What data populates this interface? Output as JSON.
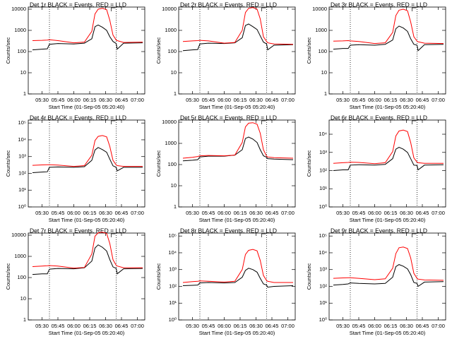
{
  "chart_data": [
    {
      "type": "line",
      "title": "Det 1r BLACK = Events, RED = LLD",
      "x_label": "Start Time (01-Sep-05 05:20:40)",
      "y_label": "Counts/sec",
      "log_scale": true,
      "xlim": [
        "05:17",
        "07:07"
      ],
      "xticks": [
        "05:30",
        "05:45",
        "06:00",
        "06:15",
        "06:30",
        "06:45",
        "07:00"
      ],
      "vlines": [
        "05:37",
        "06:40"
      ],
      "ylim": [
        1,
        12600
      ],
      "yticks": [
        1,
        10,
        100,
        1000,
        10000
      ],
      "x": [
        "05:21",
        "05:30",
        "05:35",
        "05:37",
        "05:45",
        "06:00",
        "06:10",
        "06:17",
        "06:20",
        "06:23",
        "06:27",
        "06:31",
        "06:34",
        "06:37",
        "06:40",
        "06:41",
        "06:47",
        "07:05"
      ],
      "series": [
        {
          "name": "BLACK = Events",
          "color": "#000000",
          "values": [
            120,
            130,
            135,
            220,
            240,
            230,
            250,
            400,
            1500,
            1800,
            1400,
            1000,
            500,
            300,
            240,
            130,
            250,
            260
          ]
        },
        {
          "name": "RED = LLD",
          "color": "#ff0000",
          "values": [
            330,
            340,
            350,
            360,
            330,
            260,
            280,
            900,
            6000,
            10000,
            11000,
            9500,
            3000,
            600,
            350,
            330,
            270,
            280
          ]
        }
      ]
    },
    {
      "type": "line",
      "title": "Det 2r BLACK = Events, RED = LLD",
      "x_label": "Start Time (01-Sep-05 05:20:40)",
      "y_label": "Counts/sec",
      "log_scale": true,
      "xlim": [
        "05:17",
        "07:07"
      ],
      "xticks": [
        "05:30",
        "05:45",
        "06:00",
        "06:15",
        "06:30",
        "06:45",
        "07:00"
      ],
      "vlines": [
        "05:37",
        "06:40"
      ],
      "ylim": [
        1,
        12600
      ],
      "yticks": [
        1,
        10,
        100,
        1000,
        10000
      ],
      "x": [
        "05:21",
        "05:30",
        "05:35",
        "05:37",
        "05:45",
        "06:00",
        "06:10",
        "06:17",
        "06:20",
        "06:23",
        "06:27",
        "06:31",
        "06:34",
        "06:37",
        "06:40",
        "06:41",
        "06:47",
        "07:05"
      ],
      "series": [
        {
          "name": "BLACK = Events",
          "color": "#000000",
          "values": [
            110,
            120,
            125,
            230,
            250,
            240,
            260,
            450,
            1700,
            2000,
            1500,
            1100,
            550,
            280,
            230,
            120,
            200,
            210
          ]
        },
        {
          "name": "RED = LLD",
          "color": "#ff0000",
          "values": [
            300,
            320,
            330,
            340,
            320,
            250,
            270,
            1000,
            7000,
            11000,
            12000,
            10000,
            3500,
            500,
            300,
            260,
            230,
            220
          ]
        }
      ]
    },
    {
      "type": "line",
      "title": "Det 3r BLACK = Events, RED = LLD",
      "x_label": "Start Time (01-Sep-05 05:20:40)",
      "y_label": "Counts/sec",
      "log_scale": true,
      "xlim": [
        "05:17",
        "07:07"
      ],
      "xticks": [
        "05:30",
        "05:45",
        "06:00",
        "06:15",
        "06:30",
        "06:45",
        "07:00"
      ],
      "vlines": [
        "05:37",
        "06:40"
      ],
      "ylim": [
        1,
        12600
      ],
      "yticks": [
        1,
        10,
        100,
        1000,
        10000
      ],
      "x": [
        "05:21",
        "05:30",
        "05:35",
        "05:37",
        "05:45",
        "06:00",
        "06:10",
        "06:17",
        "06:20",
        "06:23",
        "06:27",
        "06:31",
        "06:34",
        "06:37",
        "06:40",
        "06:41",
        "06:47",
        "07:05"
      ],
      "series": [
        {
          "name": "BLACK = Events",
          "color": "#000000",
          "values": [
            130,
            140,
            140,
            200,
            210,
            200,
            220,
            350,
            1200,
            1600,
            1300,
            900,
            400,
            220,
            200,
            110,
            210,
            220
          ]
        },
        {
          "name": "RED = LLD",
          "color": "#ff0000",
          "values": [
            310,
            320,
            330,
            320,
            300,
            240,
            260,
            800,
            5000,
            9000,
            10000,
            8500,
            2500,
            500,
            310,
            290,
            250,
            240
          ]
        }
      ]
    },
    {
      "type": "line",
      "title": "Det 4r BLACK = Events, RED = LLD",
      "x_label": "Start Time (01-Sep-05 05:20:40)",
      "y_label": "Counts/sec",
      "log_scale": true,
      "xlim": [
        "05:17",
        "07:07"
      ],
      "xticks": [
        "05:30",
        "05:45",
        "06:00",
        "06:15",
        "06:30",
        "06:45",
        "07:00"
      ],
      "vlines": [
        "05:37",
        "06:40"
      ],
      "ylim": [
        1,
        150000
      ],
      "yticks": [
        {
          "value": 1,
          "label": "10⁰"
        },
        {
          "value": 10,
          "label": "10¹"
        },
        {
          "value": 100,
          "label": "10²"
        },
        {
          "value": 1000,
          "label": "10³"
        },
        {
          "value": 10000,
          "label": "10⁴"
        },
        {
          "value": 100000,
          "label": "10⁵"
        }
      ],
      "x": [
        "05:21",
        "05:30",
        "05:35",
        "05:37",
        "05:45",
        "06:00",
        "06:10",
        "06:17",
        "06:20",
        "06:23",
        "06:27",
        "06:31",
        "06:34",
        "06:37",
        "06:40",
        "06:41",
        "06:47",
        "07:05"
      ],
      "series": [
        {
          "name": "BLACK = Events",
          "color": "#000000",
          "values": [
            110,
            120,
            125,
            230,
            240,
            230,
            250,
            600,
            2500,
            3500,
            2600,
            1800,
            700,
            280,
            230,
            140,
            230,
            230
          ]
        },
        {
          "name": "RED = LLD",
          "color": "#ff0000",
          "values": [
            300,
            320,
            330,
            330,
            310,
            260,
            290,
            1200,
            9000,
            16000,
            18000,
            15000,
            4000,
            600,
            320,
            290,
            260,
            260
          ]
        }
      ]
    },
    {
      "type": "line",
      "title": "Det 5r BLACK = Events, RED = LLD",
      "x_label": "Start Time (01-Sep-05 05:20:40)",
      "y_label": "Counts/sec",
      "log_scale": true,
      "xlim": [
        "05:17",
        "07:07"
      ],
      "xticks": [
        "05:30",
        "05:45",
        "06:00",
        "06:15",
        "06:30",
        "06:45",
        "07:00"
      ],
      "vlines": [
        "05:37",
        "06:40"
      ],
      "ylim": [
        1,
        12600
      ],
      "yticks": [
        1,
        10,
        100,
        1000,
        10000
      ],
      "x": [
        "05:21",
        "05:30",
        "05:35",
        "05:37",
        "05:45",
        "06:00",
        "06:10",
        "06:17",
        "06:20",
        "06:23",
        "06:27",
        "06:31",
        "06:34",
        "06:37",
        "06:40",
        "06:41",
        "06:47",
        "07:05"
      ],
      "series": [
        {
          "name": "BLACK = Events",
          "color": "#000000",
          "values": [
            150,
            160,
            170,
            230,
            250,
            250,
            280,
            500,
            1700,
            2000,
            1600,
            1100,
            500,
            260,
            220,
            190,
            180,
            170
          ]
        },
        {
          "name": "RED = LLD",
          "color": "#ff0000",
          "values": [
            200,
            220,
            240,
            260,
            270,
            260,
            280,
            1100,
            6000,
            9000,
            9500,
            8000,
            3000,
            500,
            250,
            230,
            210,
            200
          ]
        }
      ]
    },
    {
      "type": "line",
      "title": "Det 6r BLACK = Events, RED = LLD",
      "x_label": "Start Time (01-Sep-05 05:20:40)",
      "y_label": "Counts/sec",
      "log_scale": true,
      "xlim": [
        "05:17",
        "07:07"
      ],
      "xticks": [
        "05:30",
        "05:45",
        "06:00",
        "06:15",
        "06:30",
        "06:45",
        "07:00"
      ],
      "vlines": [
        "05:37",
        "06:40"
      ],
      "ylim": [
        1,
        60000
      ],
      "yticks": [
        {
          "value": 1,
          "label": "10⁰"
        },
        {
          "value": 10,
          "label": "10¹"
        },
        {
          "value": 100,
          "label": "10²"
        },
        {
          "value": 1000,
          "label": "10³"
        },
        {
          "value": 10000,
          "label": "10⁴"
        }
      ],
      "x": [
        "05:21",
        "05:30",
        "05:35",
        "05:37",
        "05:45",
        "06:00",
        "06:10",
        "06:17",
        "06:20",
        "06:23",
        "06:27",
        "06:31",
        "06:34",
        "06:37",
        "06:40",
        "06:41",
        "06:47",
        "07:05"
      ],
      "series": [
        {
          "name": "BLACK = Events",
          "color": "#000000",
          "values": [
            100,
            110,
            110,
            200,
            210,
            200,
            220,
            450,
            1500,
            1900,
            1500,
            1000,
            450,
            200,
            190,
            110,
            200,
            210
          ]
        },
        {
          "name": "RED = LLD",
          "color": "#ff0000",
          "values": [
            250,
            270,
            280,
            290,
            280,
            240,
            270,
            1100,
            8000,
            15000,
            17000,
            14000,
            3500,
            500,
            290,
            270,
            250,
            250
          ]
        }
      ]
    },
    {
      "type": "line",
      "title": "Det 7r BLACK = Events, RED = LLD",
      "x_label": "Start Time (01-Sep-05 05:20:40)",
      "y_label": "Counts/sec",
      "log_scale": true,
      "xlim": [
        "05:17",
        "07:07"
      ],
      "xticks": [
        "05:30",
        "05:45",
        "06:00",
        "06:15",
        "06:30",
        "06:45",
        "07:00"
      ],
      "vlines": [
        "05:37",
        "06:40"
      ],
      "ylim": [
        1,
        12600
      ],
      "yticks": [
        1,
        10,
        100,
        1000,
        10000
      ],
      "x": [
        "05:21",
        "05:30",
        "05:35",
        "05:37",
        "05:45",
        "06:00",
        "06:10",
        "06:17",
        "06:20",
        "06:23",
        "06:27",
        "06:31",
        "06:34",
        "06:37",
        "06:40",
        "06:41",
        "06:47",
        "07:05"
      ],
      "series": [
        {
          "name": "BLACK = Events",
          "color": "#000000",
          "values": [
            140,
            150,
            150,
            250,
            270,
            260,
            290,
            600,
            2500,
            3500,
            2700,
            1800,
            700,
            320,
            270,
            150,
            260,
            270
          ]
        },
        {
          "name": "RED = LLD",
          "color": "#ff0000",
          "values": [
            330,
            350,
            360,
            370,
            350,
            280,
            300,
            1300,
            9000,
            13000,
            14000,
            12000,
            4000,
            700,
            380,
            350,
            290,
            290
          ]
        }
      ]
    },
    {
      "type": "line",
      "title": "Det 8r BLACK = Events, RED = LLD",
      "x_label": "Start Time (01-Sep-05 05:20:40)",
      "y_label": "Counts/sec",
      "log_scale": true,
      "xlim": [
        "05:17",
        "07:07"
      ],
      "xticks": [
        "05:30",
        "05:45",
        "06:00",
        "06:15",
        "06:30",
        "06:45",
        "07:00"
      ],
      "vlines": [
        "05:37",
        "06:40"
      ],
      "ylim": [
        1,
        150000
      ],
      "yticks": [
        {
          "value": 1,
          "label": "10⁰"
        },
        {
          "value": 10,
          "label": "10¹"
        },
        {
          "value": 100,
          "label": "10²"
        },
        {
          "value": 1000,
          "label": "10³"
        },
        {
          "value": 10000,
          "label": "10⁴"
        },
        {
          "value": 100000,
          "label": "10⁵"
        }
      ],
      "x": [
        "05:21",
        "05:30",
        "05:35",
        "05:37",
        "05:45",
        "06:00",
        "06:10",
        "06:17",
        "06:20",
        "06:23",
        "06:27",
        "06:31",
        "06:34",
        "06:37",
        "06:40",
        "06:41",
        "06:47",
        "07:05"
      ],
      "series": [
        {
          "name": "BLACK = Events",
          "color": "#000000",
          "values": [
            110,
            115,
            120,
            160,
            170,
            160,
            170,
            350,
            900,
            1200,
            1000,
            700,
            300,
            140,
            120,
            90,
            100,
            110
          ]
        },
        {
          "name": "RED = LLD",
          "color": "#ff0000",
          "values": [
            170,
            190,
            200,
            210,
            200,
            180,
            200,
            1000,
            8000,
            14000,
            16000,
            13000,
            3500,
            450,
            220,
            200,
            170,
            170
          ]
        }
      ]
    },
    {
      "type": "line",
      "title": "Det 9r BLACK = Events, RED = LLD",
      "x_label": "Start Time (01-Sep-05 05:20:40)",
      "y_label": "Counts/sec",
      "log_scale": true,
      "xlim": [
        "05:17",
        "07:07"
      ],
      "xticks": [
        "05:30",
        "05:45",
        "06:00",
        "06:15",
        "06:30",
        "06:45",
        "07:00"
      ],
      "vlines": [
        "05:37",
        "06:40"
      ],
      "ylim": [
        1,
        150000
      ],
      "yticks": [
        {
          "value": 1,
          "label": "10⁰"
        },
        {
          "value": 10,
          "label": "10¹"
        },
        {
          "value": 100,
          "label": "10²"
        },
        {
          "value": 1000,
          "label": "10³"
        },
        {
          "value": 10000,
          "label": "10⁴"
        },
        {
          "value": 100000,
          "label": "10⁵"
        }
      ],
      "x": [
        "05:21",
        "05:30",
        "05:35",
        "05:37",
        "05:45",
        "06:00",
        "06:10",
        "06:17",
        "06:20",
        "06:23",
        "06:27",
        "06:31",
        "06:34",
        "06:37",
        "06:40",
        "06:41",
        "06:47",
        "07:05"
      ],
      "series": [
        {
          "name": "BLACK = Events",
          "color": "#000000",
          "values": [
            120,
            130,
            140,
            160,
            150,
            140,
            150,
            350,
            1500,
            2000,
            1600,
            1100,
            500,
            170,
            150,
            100,
            180,
            190
          ]
        },
        {
          "name": "RED = LLD",
          "color": "#ff0000",
          "values": [
            300,
            320,
            330,
            330,
            300,
            250,
            280,
            1200,
            9000,
            20000,
            22000,
            18000,
            5000,
            600,
            300,
            270,
            240,
            230
          ]
        }
      ]
    }
  ]
}
